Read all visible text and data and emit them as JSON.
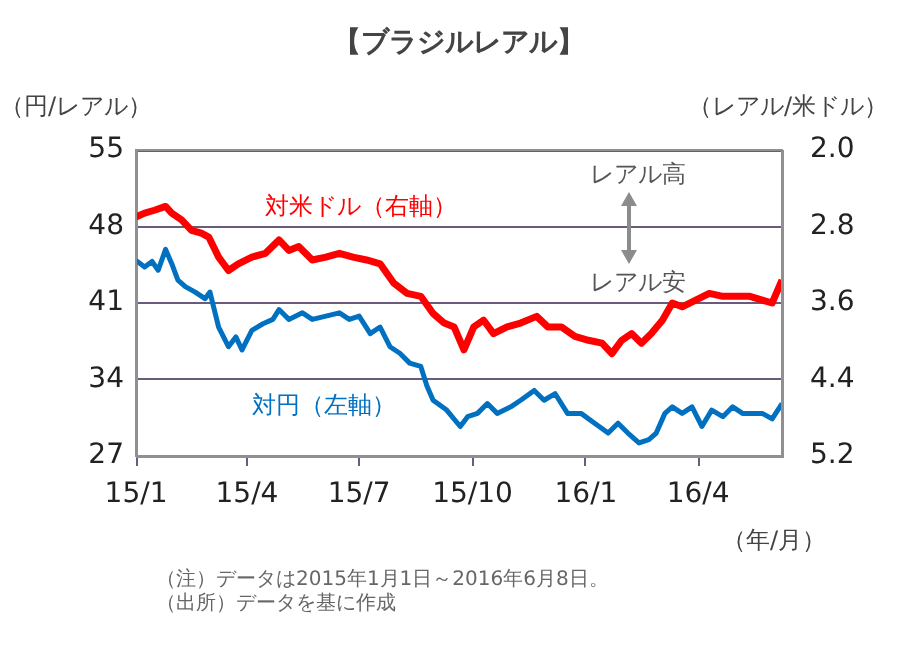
{
  "chart_data": {
    "type": "line",
    "title": "【ブラジルレアル】",
    "ylabel": "（円/レアル）",
    "y2label": "（レアル/米ドル）",
    "xlabel": "（年/月）",
    "xlim": [
      "2015-01-01",
      "2016-06-08"
    ],
    "xticks": [
      {
        "value": "2015-01",
        "label": "15/1"
      },
      {
        "value": "2015-04",
        "label": "15/4"
      },
      {
        "value": "2015-07",
        "label": "15/7"
      },
      {
        "value": "2015-10",
        "label": "15/10"
      },
      {
        "value": "2016-01",
        "label": "16/1"
      },
      {
        "value": "2016-04",
        "label": "16/4"
      }
    ],
    "ylim": [
      27,
      55
    ],
    "yticks": [
      27,
      34,
      41,
      48,
      55
    ],
    "y2lim": [
      5.2,
      2.0
    ],
    "y2ticks": [
      {
        "value": 2,
        "label": "2.0"
      },
      2.8,
      3.6,
      4.4,
      5.2
    ],
    "grid": "y",
    "line_style": "solid",
    "marker": "none",
    "legend": false,
    "annotations": [
      "レアル高",
      "レアル安",
      "（注）データは2015年1月1日～2016年6月8日。",
      "（出所）データを基に作成"
    ],
    "series": [
      {
        "name": "対米ドル（右軸）",
        "color": "#ff0000",
        "axis": "y2",
        "x": [
          "2015-01-01",
          "2015-01-08",
          "2015-01-16",
          "2015-01-25",
          "2015-01-30",
          "2015-02-07",
          "2015-02-15",
          "2015-02-23",
          "2015-03-01",
          "2015-03-09",
          "2015-03-17",
          "2015-03-25",
          "2015-04-05",
          "2015-04-16",
          "2015-04-27",
          "2015-05-05",
          "2015-05-13",
          "2015-05-24",
          "2015-06-04",
          "2015-06-15",
          "2015-06-26",
          "2015-07-07",
          "2015-07-18",
          "2015-07-29",
          "2015-08-09",
          "2015-08-20",
          "2015-08-30",
          "2015-09-08",
          "2015-09-16",
          "2015-09-24",
          "2015-10-02",
          "2015-10-10",
          "2015-10-18",
          "2015-10-29",
          "2015-11-09",
          "2015-11-22",
          "2015-12-01",
          "2015-12-12",
          "2015-12-23",
          "2016-01-03",
          "2016-01-14",
          "2016-01-22",
          "2016-01-30",
          "2016-02-07",
          "2016-02-15",
          "2016-02-23",
          "2016-03-03",
          "2016-03-11",
          "2016-03-19",
          "2016-03-30",
          "2016-04-10",
          "2016-04-21",
          "2016-05-02",
          "2016-05-13",
          "2016-05-23",
          "2016-05-31",
          "2016-06-08"
        ],
        "values": [
          2.7,
          2.66,
          2.63,
          2.59,
          2.66,
          2.73,
          2.84,
          2.87,
          2.91,
          3.12,
          3.26,
          3.19,
          3.12,
          3.08,
          2.94,
          3.05,
          3.01,
          3.15,
          3.12,
          3.08,
          3.12,
          3.15,
          3.19,
          3.39,
          3.5,
          3.53,
          3.71,
          3.81,
          3.85,
          4.09,
          3.85,
          3.78,
          3.92,
          3.85,
          3.81,
          3.74,
          3.85,
          3.85,
          3.95,
          3.99,
          4.02,
          4.13,
          3.99,
          3.92,
          4.02,
          3.92,
          3.78,
          3.6,
          3.64,
          3.57,
          3.5,
          3.53,
          3.53,
          3.53,
          3.57,
          3.6,
          3.36
        ]
      },
      {
        "name": "対円（左軸）",
        "color": "#0070c0",
        "x": [
          "2015-01-01",
          "2015-01-08",
          "2015-01-14",
          "2015-01-19",
          "2015-01-25",
          "2015-01-30",
          "2015-02-04",
          "2015-02-10",
          "2015-02-18",
          "2015-02-26",
          "2015-03-02",
          "2015-03-09",
          "2015-03-17",
          "2015-03-23",
          "2015-03-28",
          "2015-04-05",
          "2015-04-14",
          "2015-04-22",
          "2015-04-27",
          "2015-05-05",
          "2015-05-16",
          "2015-05-24",
          "2015-06-04",
          "2015-06-15",
          "2015-06-23",
          "2015-07-01",
          "2015-07-10",
          "2015-07-18",
          "2015-07-26",
          "2015-08-03",
          "2015-08-11",
          "2015-08-20",
          "2015-08-25",
          "2015-08-30",
          "2015-09-10",
          "2015-09-21",
          "2015-09-27",
          "2015-10-05",
          "2015-10-13",
          "2015-10-21",
          "2015-11-01",
          "2015-11-09",
          "2015-11-20",
          "2015-11-28",
          "2015-12-07",
          "2015-12-17",
          "2015-12-28",
          "2016-01-08",
          "2016-01-19",
          "2016-01-27",
          "2016-02-04",
          "2016-02-13",
          "2016-02-21",
          "2016-02-27",
          "2016-03-05",
          "2016-03-11",
          "2016-03-19",
          "2016-03-27",
          "2016-04-04",
          "2016-04-12",
          "2016-04-21",
          "2016-04-29",
          "2016-05-07",
          "2016-05-15",
          "2016-05-23",
          "2016-05-31",
          "2016-06-08"
        ],
        "values": [
          44.9,
          44.3,
          44.8,
          44.0,
          45.9,
          44.6,
          43.1,
          42.5,
          42.0,
          41.4,
          42.0,
          38.8,
          37.0,
          37.9,
          36.7,
          38.5,
          39.1,
          39.5,
          40.4,
          39.5,
          40.1,
          39.5,
          39.8,
          40.1,
          39.5,
          39.8,
          38.2,
          38.8,
          37.0,
          36.4,
          35.5,
          35.2,
          33.4,
          32.1,
          31.2,
          29.7,
          30.6,
          30.9,
          31.8,
          30.9,
          31.5,
          32.1,
          33.0,
          32.1,
          32.7,
          30.9,
          30.9,
          30.0,
          29.1,
          30.0,
          29.1,
          28.2,
          28.5,
          29.1,
          30.9,
          31.5,
          30.9,
          31.5,
          29.7,
          31.2,
          30.6,
          31.5,
          30.9,
          30.9,
          30.9,
          30.4,
          31.8
        ]
      }
    ]
  }
}
